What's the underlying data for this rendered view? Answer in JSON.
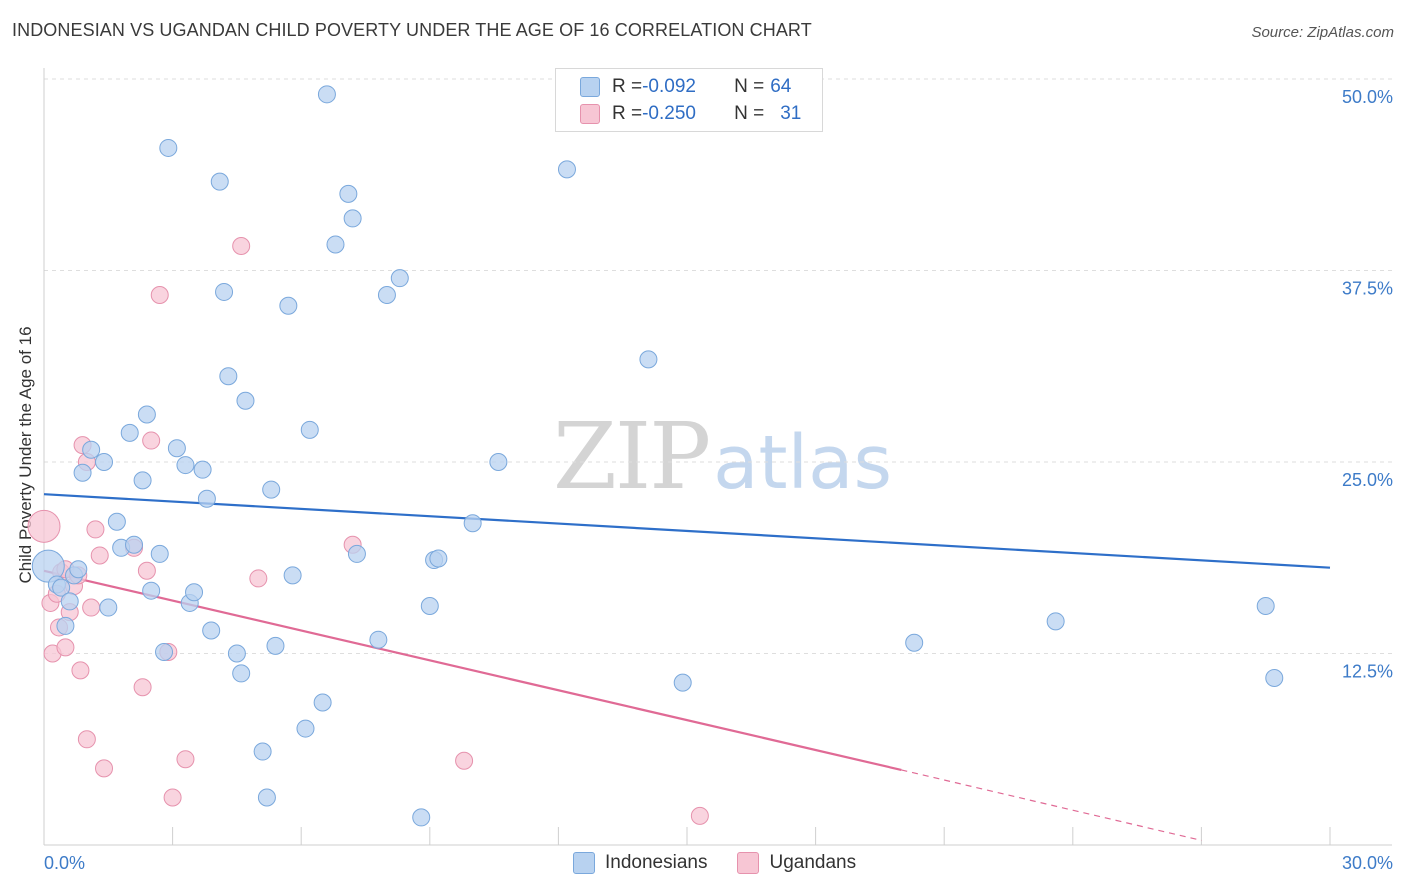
{
  "title": "INDONESIAN VS UGANDAN CHILD POVERTY UNDER THE AGE OF 16 CORRELATION CHART",
  "source": "Source: ZipAtlas.com",
  "watermark": {
    "zip": "ZIP",
    "atlas": "atlas"
  },
  "legend": {
    "rows": [
      {
        "r_label": "R = ",
        "r_value": "-0.092",
        "n_label": "N = ",
        "n_value": "64"
      },
      {
        "r_label": "R = ",
        "r_value": "-0.250",
        "n_label": "N = ",
        "n_value": "31"
      }
    ]
  },
  "bottom_legend": [
    "Indonesians",
    "Ugandans"
  ],
  "colors": {
    "indonesians_fill": "#b8d2f0",
    "indonesians_stroke": "#7aa8dc",
    "indonesians_line": "#2e6fc9",
    "ugandans_fill": "#f7c6d4",
    "ugandans_stroke": "#e692ad",
    "ugandans_line": "#e06a95",
    "tick": "#3d7bc8",
    "grid": "#dedede"
  },
  "chart_data": {
    "type": "scatter",
    "title": "INDONESIAN VS UGANDAN CHILD POVERTY UNDER THE AGE OF 16 CORRELATION CHART",
    "xlabel": "",
    "ylabel": "Child Poverty Under the Age of 16",
    "xlim": [
      0,
      30
    ],
    "ylim": [
      0,
      50
    ],
    "x_tick_labels": [
      "0.0%",
      "30.0%"
    ],
    "y_ticks": [
      12.5,
      25.0,
      37.5,
      50.0
    ],
    "y_tick_labels": [
      "12.5%",
      "25.0%",
      "37.5%",
      "50.0%"
    ],
    "grid": true,
    "series": [
      {
        "name": "Indonesians",
        "r": -0.092,
        "n": 64,
        "trend": {
          "x": [
            0,
            30
          ],
          "y": [
            22.9,
            18.1
          ]
        },
        "points": [
          [
            0.1,
            18.2,
            2
          ],
          [
            0.3,
            17.0,
            1
          ],
          [
            0.4,
            16.8,
            1
          ],
          [
            0.5,
            14.3,
            1
          ],
          [
            0.6,
            15.9,
            1
          ],
          [
            0.7,
            17.6,
            1
          ],
          [
            0.8,
            18.0,
            1
          ],
          [
            0.9,
            24.3,
            1
          ],
          [
            1.1,
            25.8,
            1
          ],
          [
            1.4,
            25.0,
            1
          ],
          [
            1.5,
            15.5,
            1
          ],
          [
            1.7,
            21.1,
            1
          ],
          [
            1.8,
            19.4,
            1
          ],
          [
            2.0,
            26.9,
            1
          ],
          [
            2.1,
            19.6,
            1
          ],
          [
            2.3,
            23.8,
            1
          ],
          [
            2.4,
            28.1,
            1
          ],
          [
            2.5,
            16.6,
            1
          ],
          [
            2.7,
            19.0,
            1
          ],
          [
            2.8,
            12.6,
            1
          ],
          [
            2.9,
            45.5,
            1
          ],
          [
            3.1,
            25.9,
            1
          ],
          [
            3.3,
            24.8,
            1
          ],
          [
            3.4,
            15.8,
            1
          ],
          [
            3.5,
            16.5,
            1
          ],
          [
            3.7,
            24.5,
            1
          ],
          [
            3.8,
            22.6,
            1
          ],
          [
            3.9,
            14.0,
            1
          ],
          [
            4.1,
            43.3,
            1
          ],
          [
            4.2,
            36.1,
            1
          ],
          [
            4.3,
            30.6,
            1
          ],
          [
            4.5,
            12.5,
            1
          ],
          [
            4.6,
            11.2,
            1
          ],
          [
            4.7,
            29.0,
            1
          ],
          [
            5.1,
            6.1,
            1
          ],
          [
            5.2,
            3.1,
            1
          ],
          [
            5.3,
            23.2,
            1
          ],
          [
            5.4,
            13.0,
            1
          ],
          [
            5.7,
            35.2,
            1
          ],
          [
            5.8,
            17.6,
            1
          ],
          [
            6.1,
            7.6,
            1
          ],
          [
            6.2,
            27.1,
            1
          ],
          [
            6.5,
            9.3,
            1
          ],
          [
            6.6,
            49.0,
            1
          ],
          [
            6.8,
            39.2,
            1
          ],
          [
            7.1,
            42.5,
            1
          ],
          [
            7.2,
            40.9,
            1
          ],
          [
            7.3,
            19.0,
            1
          ],
          [
            7.8,
            13.4,
            1
          ],
          [
            8.0,
            35.9,
            1
          ],
          [
            8.3,
            37.0,
            1
          ],
          [
            8.8,
            1.8,
            1
          ],
          [
            9.0,
            15.6,
            1
          ],
          [
            9.1,
            18.6,
            1
          ],
          [
            9.2,
            18.7,
            1
          ],
          [
            10.0,
            21.0,
            1
          ],
          [
            10.6,
            25.0,
            1
          ],
          [
            12.2,
            44.1,
            1
          ],
          [
            14.1,
            31.7,
            1
          ],
          [
            14.9,
            10.6,
            1
          ],
          [
            20.3,
            13.2,
            1
          ],
          [
            23.6,
            14.6,
            1
          ],
          [
            28.5,
            15.6,
            1
          ],
          [
            28.7,
            10.9,
            1
          ]
        ]
      },
      {
        "name": "Ugandans",
        "r": -0.25,
        "n": 31,
        "trend": {
          "x": [
            0,
            20
          ],
          "y": [
            17.9,
            4.9
          ]
        },
        "trend_dashed": {
          "x": [
            20,
            27
          ],
          "y": [
            4.9,
            0.3
          ]
        },
        "points": [
          [
            0.0,
            20.8,
            2
          ],
          [
            0.15,
            15.8,
            1
          ],
          [
            0.2,
            12.5,
            1
          ],
          [
            0.3,
            16.4,
            1
          ],
          [
            0.35,
            14.2,
            1
          ],
          [
            0.4,
            17.8,
            1
          ],
          [
            0.5,
            12.9,
            1
          ],
          [
            0.5,
            18.0,
            1
          ],
          [
            0.6,
            15.2,
            1
          ],
          [
            0.7,
            16.9,
            1
          ],
          [
            0.8,
            17.6,
            1
          ],
          [
            0.85,
            11.4,
            1
          ],
          [
            0.9,
            26.1,
            1
          ],
          [
            1.0,
            25.0,
            1
          ],
          [
            1.0,
            6.9,
            1
          ],
          [
            1.1,
            15.5,
            1
          ],
          [
            1.2,
            20.6,
            1
          ],
          [
            1.3,
            18.9,
            1
          ],
          [
            1.4,
            5.0,
            1
          ],
          [
            2.1,
            19.4,
            1
          ],
          [
            2.3,
            10.3,
            1
          ],
          [
            2.4,
            17.9,
            1
          ],
          [
            2.5,
            26.4,
            1
          ],
          [
            2.7,
            35.9,
            1
          ],
          [
            2.9,
            12.6,
            1
          ],
          [
            3.0,
            3.1,
            1
          ],
          [
            3.3,
            5.6,
            1
          ],
          [
            4.6,
            39.1,
            1
          ],
          [
            5.0,
            17.4,
            1
          ],
          [
            7.2,
            19.6,
            1
          ],
          [
            9.8,
            5.5,
            1
          ],
          [
            15.3,
            1.9,
            1
          ]
        ]
      }
    ]
  }
}
